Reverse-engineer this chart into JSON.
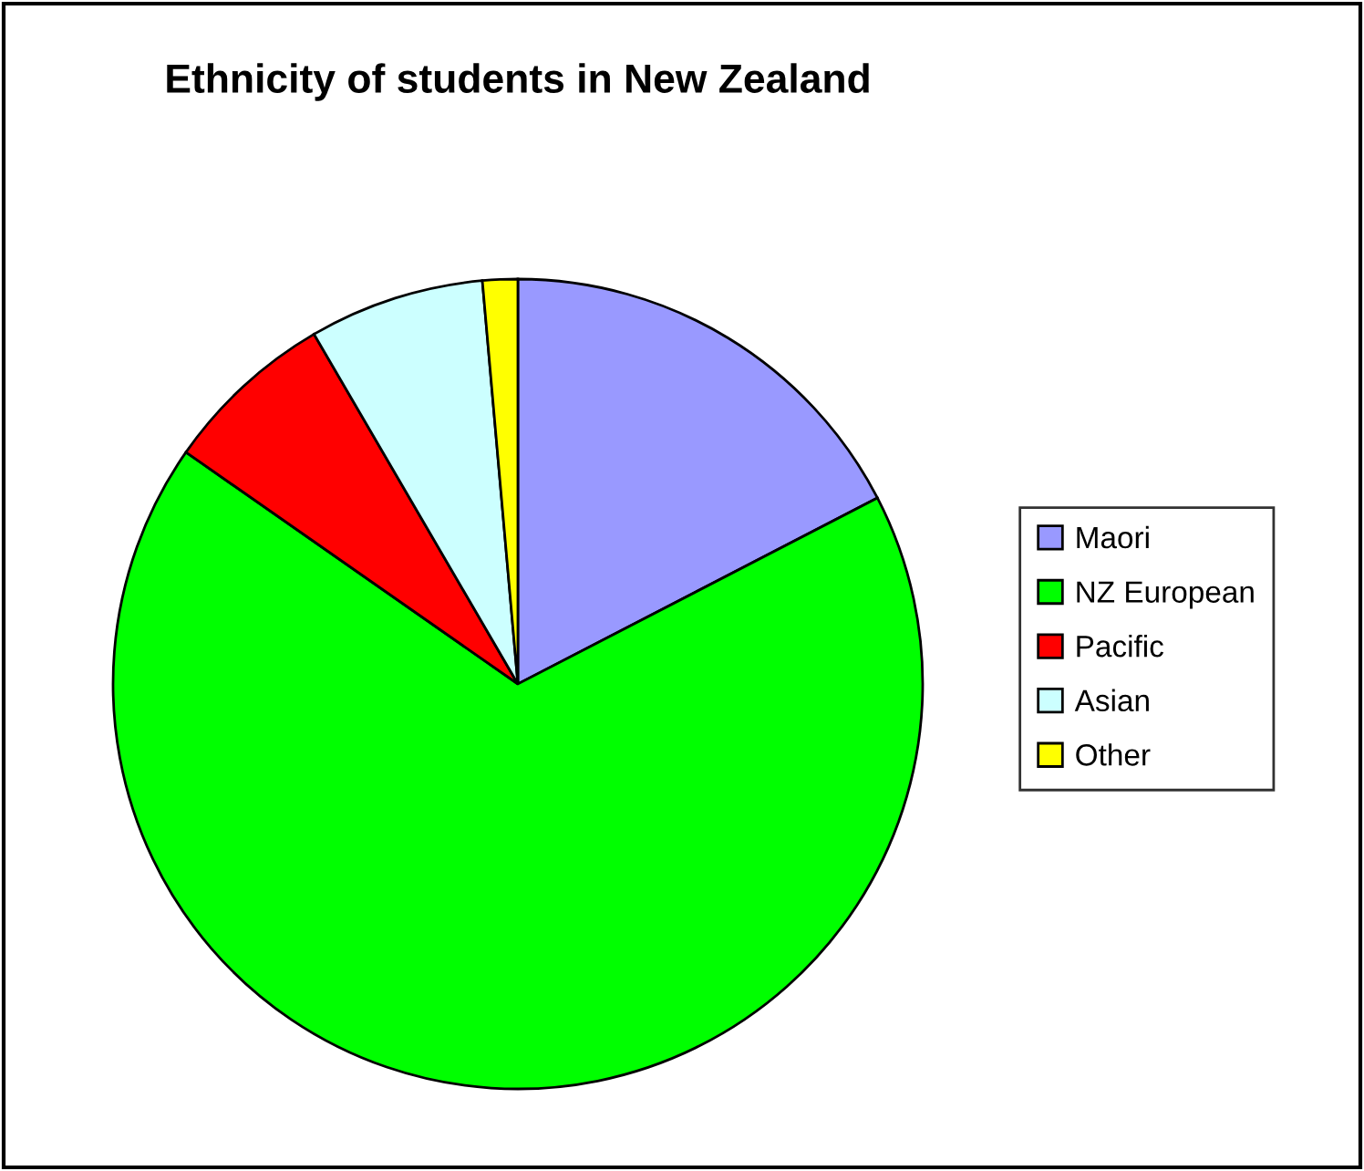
{
  "chart_data": {
    "type": "pie",
    "title": "Ethnicity of students in New Zealand",
    "categories": [
      "Maori",
      "NZ European",
      "Pacific",
      "Asian",
      "Other"
    ],
    "values": [
      17.4,
      67.3,
      6.9,
      7.0,
      1.4
    ],
    "colors": [
      "#9999ff",
      "#00ff00",
      "#ff0000",
      "#ccffff",
      "#ffff00"
    ],
    "legend": "right"
  }
}
